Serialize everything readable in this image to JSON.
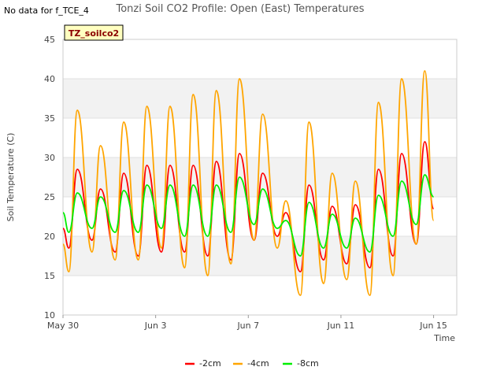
{
  "no_data_note": "No data for f_TCE_4",
  "chart_data": {
    "type": "line",
    "title": "Tonzi Soil CO2 Profile: Open (East) Temperatures",
    "xlabel": "Time",
    "ylabel": "Soil Temperature (C)",
    "station_badge": "TZ_soilco2",
    "ylim": [
      10,
      45
    ],
    "yticks": [
      10,
      15,
      20,
      25,
      30,
      35,
      40,
      45
    ],
    "xlim_days": [
      0,
      17
    ],
    "xticks": [
      {
        "day": 0,
        "label": "May 30"
      },
      {
        "day": 4,
        "label": "Jun 3"
      },
      {
        "day": 8,
        "label": "Jun 7"
      },
      {
        "day": 12,
        "label": "Jun 11"
      },
      {
        "day": 16,
        "label": "Jun 15"
      }
    ],
    "grid": true,
    "legend_position": "bottom",
    "series": [
      {
        "name": "-2cm",
        "color": "#ff0000",
        "daily_max": [
          28.5,
          26.0,
          28.0,
          29.0,
          29.0,
          29.0,
          29.5,
          30.5,
          28.0,
          23.0,
          26.5,
          23.8,
          24.0,
          28.5,
          30.5,
          32.0
        ],
        "daily_min": [
          18.5,
          19.5,
          18.0,
          17.5,
          18.0,
          18.0,
          17.5,
          17.0,
          19.5,
          20.0,
          15.5,
          17.0,
          16.5,
          16.0,
          17.5,
          19.0
        ],
        "start": 21.0,
        "end": 23.5
      },
      {
        "name": "-4cm",
        "color": "#ffa500",
        "daily_max": [
          36.0,
          31.5,
          34.5,
          36.5,
          36.5,
          38.0,
          38.5,
          40.0,
          35.5,
          24.5,
          34.5,
          28.0,
          27.0,
          37.0,
          40.0,
          41.0
        ],
        "daily_min": [
          15.5,
          18.0,
          17.0,
          17.0,
          18.5,
          16.0,
          15.0,
          16.5,
          19.5,
          18.5,
          12.5,
          14.0,
          14.5,
          12.5,
          15.0,
          19.0
        ],
        "start": 19.0,
        "end": 22.0
      },
      {
        "name": "-8cm",
        "color": "#00ee00",
        "daily_max": [
          25.5,
          25.0,
          25.8,
          26.5,
          26.5,
          26.5,
          26.5,
          27.5,
          26.0,
          22.0,
          24.3,
          22.8,
          22.3,
          25.2,
          27.0,
          27.8
        ],
        "daily_min": [
          20.5,
          21.0,
          20.5,
          20.5,
          21.0,
          20.0,
          20.0,
          20.5,
          21.5,
          21.0,
          17.5,
          18.5,
          18.5,
          18.0,
          20.0,
          21.5
        ],
        "start": 23.0,
        "end": 25.0
      }
    ]
  }
}
